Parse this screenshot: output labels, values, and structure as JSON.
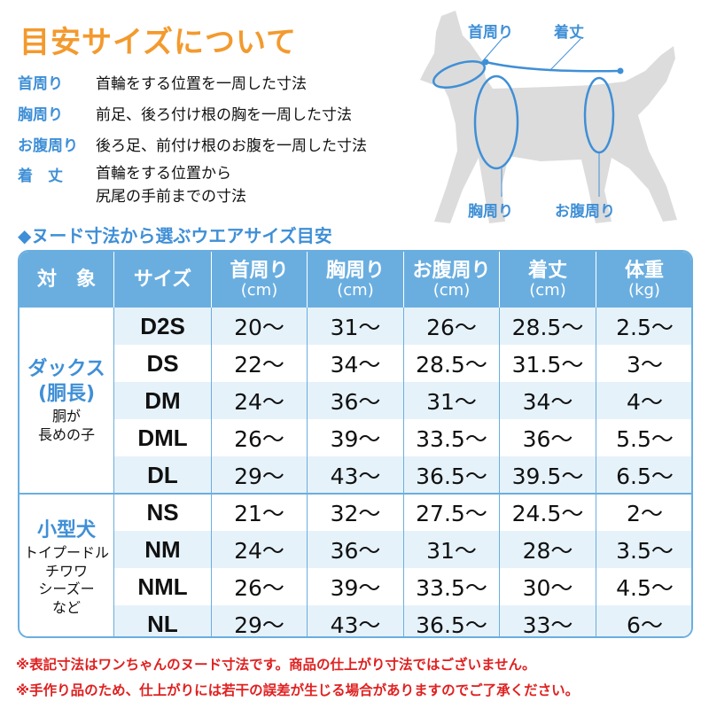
{
  "title": "目安サイズについて",
  "definitions": [
    {
      "term": "首周り",
      "desc": [
        "首輪をする位置を一周した寸法"
      ]
    },
    {
      "term": "胸周り",
      "desc": [
        "前足、後ろ付け根の胸を一周した寸法"
      ]
    },
    {
      "term": "お腹周り",
      "desc": [
        "後ろ足、前付け根のお腹を一周した寸法"
      ]
    },
    {
      "term": "着　丈",
      "desc": [
        "首輪をする位置から",
        "尻尾の手前までの寸法"
      ]
    }
  ],
  "diagram_labels": {
    "neck": "首周り",
    "length": "着丈",
    "chest": "胸周り",
    "belly": "お腹周り"
  },
  "subheading": "◆ヌード寸法から選ぶウエアサイズ目安",
  "colors": {
    "accent_orange": "#f39a2e",
    "accent_blue": "#3f8fd6",
    "header_blue": "#6aaee0",
    "row_alt": "#e6f2fa",
    "note_red": "#e02020",
    "dog_gray": "#dcdcdc"
  },
  "table": {
    "headers": [
      {
        "main": "対　象",
        "unit": ""
      },
      {
        "main": "サイズ",
        "unit": ""
      },
      {
        "main": "首周り",
        "unit": "(cm)"
      },
      {
        "main": "胸周り",
        "unit": "(cm)"
      },
      {
        "main": "お腹周り",
        "unit": "(cm)"
      },
      {
        "main": "着丈",
        "unit": "(cm)"
      },
      {
        "main": "体重",
        "unit": "(kg)"
      }
    ],
    "groups": [
      {
        "name": [
          "ダックス",
          "(胴長)"
        ],
        "sub": [
          "胴が",
          "長めの子"
        ],
        "rows": [
          [
            "D2S",
            "20～",
            "31～",
            "26～",
            "28.5～",
            "2.5～"
          ],
          [
            "DS",
            "22～",
            "34～",
            "28.5～",
            "31.5～",
            "3～"
          ],
          [
            "DM",
            "24～",
            "36～",
            "31～",
            "34～",
            "4～"
          ],
          [
            "DML",
            "26～",
            "39～",
            "33.5～",
            "36～",
            "5.5～"
          ],
          [
            "DL",
            "29～",
            "43～",
            "36.5～",
            "39.5～",
            "6.5～"
          ]
        ]
      },
      {
        "name": [
          "小型犬"
        ],
        "sub": [
          "トイプードル",
          "チワワ",
          "シーズー",
          "など"
        ],
        "rows": [
          [
            "NS",
            "21～",
            "32～",
            "27.5～",
            "24.5～",
            "2～"
          ],
          [
            "NM",
            "24～",
            "36～",
            "31～",
            "28～",
            "3.5～"
          ],
          [
            "NML",
            "26～",
            "39～",
            "33.5～",
            "30～",
            "4.5～"
          ],
          [
            "NL",
            "29～",
            "43～",
            "36.5～",
            "33～",
            "6～"
          ]
        ]
      }
    ]
  },
  "notes": [
    "※表記寸法はワンちゃんのヌード寸法です。商品の仕上がり寸法ではございません。",
    "※手作り品のため、仕上がりには若干の誤差が生じる場合がありますのでご了承ください。"
  ]
}
